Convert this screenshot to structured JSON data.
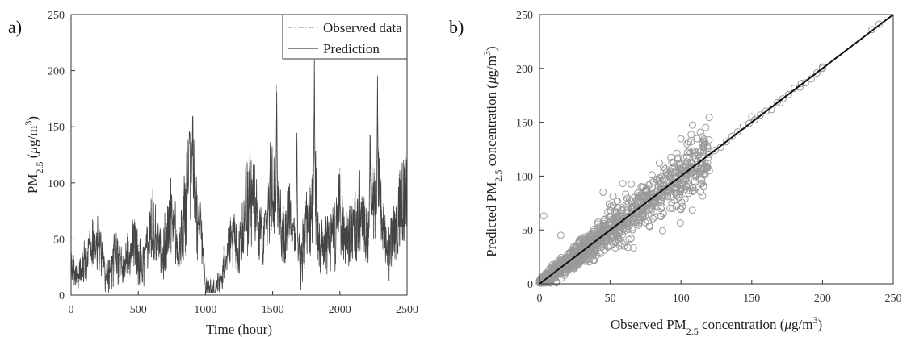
{
  "chart_data": [
    {
      "panel_label": "a)",
      "type": "line",
      "xlabel": "Time (hour)",
      "ylabel": {
        "prefix": "PM",
        "sub": "2.5",
        "unit_open": " (",
        "mu": "μ",
        "unit_mid": "g/m",
        "sup": "3",
        "unit_close": ")"
      },
      "xlim": [
        0,
        2500
      ],
      "ylim": [
        0,
        250
      ],
      "xticks": [
        0,
        500,
        1000,
        1500,
        2000,
        2500
      ],
      "yticks": [
        0,
        50,
        100,
        150,
        200,
        250
      ],
      "grid": false,
      "legend": "top-right",
      "series": [
        {
          "name": "Observed data",
          "style": "dash-dot",
          "color": "#9a9a9a"
        },
        {
          "name": "Prediction",
          "style": "solid",
          "color": "#444444"
        }
      ],
      "approx_profile": {
        "x": [
          0,
          60,
          120,
          200,
          260,
          330,
          400,
          470,
          530,
          600,
          680,
          740,
          800,
          860,
          900,
          930,
          970,
          1000,
          1050,
          1100,
          1150,
          1200,
          1250,
          1300,
          1350,
          1390,
          1430,
          1480,
          1530,
          1570,
          1620,
          1680,
          1720,
          1780,
          1815,
          1850,
          1900,
          1950,
          2000,
          2050,
          2100,
          2150,
          2200,
          2240,
          2280,
          2320,
          2360,
          2400,
          2450,
          2500
        ],
        "y": [
          30,
          20,
          40,
          60,
          20,
          45,
          30,
          60,
          30,
          75,
          35,
          90,
          40,
          110,
          130,
          80,
          60,
          10,
          5,
          8,
          40,
          60,
          40,
          90,
          120,
          70,
          50,
          110,
          120,
          60,
          90,
          40,
          60,
          80,
          120,
          50,
          55,
          60,
          90,
          60,
          70,
          90,
          60,
          110,
          130,
          70,
          45,
          60,
          90,
          120
        ],
        "peaks": [
          {
            "x": 905,
            "y": 175
          },
          {
            "x": 1530,
            "y": 187
          },
          {
            "x": 1810,
            "y": 210
          },
          {
            "x": 2280,
            "y": 195
          },
          {
            "x": 2225,
            "y": 155
          },
          {
            "x": 1680,
            "y": 140
          }
        ]
      }
    },
    {
      "panel_label": "b)",
      "type": "scatter",
      "xlabel": {
        "prefix": "Observed PM",
        "sub": "2.5",
        "mid": " concentration (",
        "mu": "μ",
        "unit": "g/m",
        "sup": "3",
        "close": ")"
      },
      "ylabel": {
        "prefix": "Predicted PM",
        "sub": "2.5",
        "mid": " concentration (",
        "mu": "μ",
        "unit": "g/m",
        "sup": "3",
        "close": ")"
      },
      "xlim": [
        0,
        250
      ],
      "ylim": [
        0,
        250
      ],
      "xticks": [
        0,
        50,
        100,
        150,
        200,
        250
      ],
      "yticks": [
        0,
        50,
        100,
        150,
        200,
        250
      ],
      "grid": false,
      "marker": "open-circle",
      "marker_color": "#9a9a9a",
      "fit_line": {
        "x": [
          0,
          250
        ],
        "y": [
          0,
          250
        ],
        "color": "#111111"
      },
      "point_cloud": {
        "x_range": [
          0,
          120
        ],
        "spread_fraction": 0.12
      },
      "outliers": [
        {
          "x": 3,
          "y": 63
        },
        {
          "x": 45,
          "y": 85
        },
        {
          "x": 70,
          "y": 80
        },
        {
          "x": 100,
          "y": 105
        },
        {
          "x": 120,
          "y": 105
        },
        {
          "x": 150,
          "y": 155
        },
        {
          "x": 170,
          "y": 168
        },
        {
          "x": 185,
          "y": 186
        },
        {
          "x": 200,
          "y": 200
        },
        {
          "x": 235,
          "y": 236
        },
        {
          "x": 240,
          "y": 241
        },
        {
          "x": 38,
          "y": 22
        },
        {
          "x": 60,
          "y": 35
        },
        {
          "x": 15,
          "y": 45
        }
      ]
    }
  ]
}
